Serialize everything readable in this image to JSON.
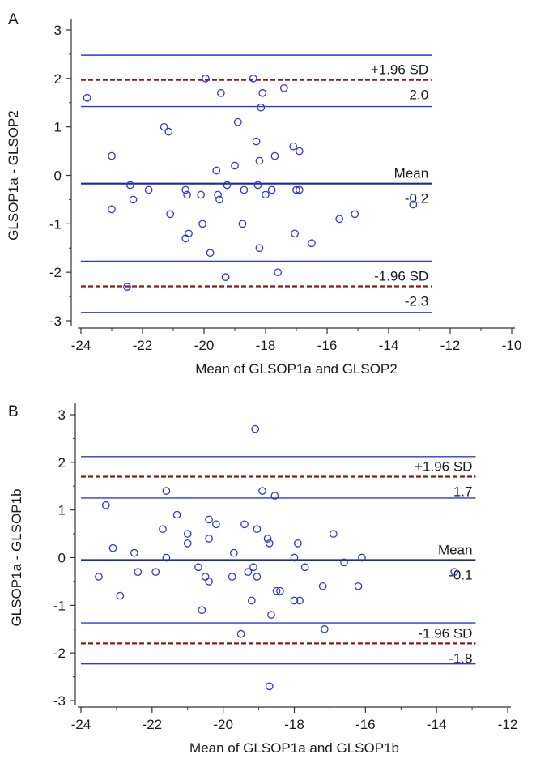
{
  "colors": {
    "axis": "#333333",
    "limit_line": "#2f38d0",
    "mean_line": "#1c2a9c",
    "sd_dashed": "#8b1a1a",
    "marker": "#2f38d0",
    "text": "#1a1a1a"
  },
  "chart_data": [
    {
      "panel_label": "A",
      "type": "scatter",
      "xlabel": "Mean of GLSOP1a and GLSOP2",
      "ylabel": "GLSOP1a - GLSOP2",
      "xlim": [
        -24,
        -10
      ],
      "ylim": [
        -3,
        3
      ],
      "xticks": [
        -24,
        -22,
        -20,
        -18,
        -16,
        -14,
        -12,
        -10
      ],
      "yticks": [
        3,
        2,
        1,
        0,
        -1,
        -2,
        -3
      ],
      "mean": -0.17,
      "upper_loa": 1.97,
      "lower_loa": -2.29,
      "ci_lines": [
        2.48,
        1.42,
        -1.77,
        -2.83
      ],
      "line_x_range": [
        -24,
        -12.6
      ],
      "annotations": {
        "upper_label": "+1.96 SD",
        "upper_value": "2.0",
        "mean_label": "Mean",
        "mean_value": "-0.2",
        "lower_label": "-1.96 SD",
        "lower_value": "-2.3"
      },
      "points": [
        [
          -23.8,
          1.6
        ],
        [
          -23.0,
          0.4
        ],
        [
          -23.0,
          -0.7
        ],
        [
          -22.5,
          -2.3
        ],
        [
          -22.4,
          -0.2
        ],
        [
          -22.3,
          -0.5
        ],
        [
          -21.8,
          -0.3
        ],
        [
          -21.3,
          1.0
        ],
        [
          -21.15,
          0.9
        ],
        [
          -21.1,
          -0.8
        ],
        [
          -20.6,
          -0.3
        ],
        [
          -20.55,
          -0.4
        ],
        [
          -20.6,
          -1.3
        ],
        [
          -20.5,
          -1.2
        ],
        [
          -20.1,
          -0.4
        ],
        [
          -20.05,
          -1.0
        ],
        [
          -19.95,
          2.0
        ],
        [
          -19.8,
          -1.6
        ],
        [
          -19.6,
          0.1
        ],
        [
          -19.55,
          -0.4
        ],
        [
          -19.5,
          -0.5
        ],
        [
          -19.45,
          1.7
        ],
        [
          -19.3,
          -2.1
        ],
        [
          -19.25,
          -0.2
        ],
        [
          -19.0,
          0.2
        ],
        [
          -18.9,
          1.1
        ],
        [
          -18.75,
          -1.0
        ],
        [
          -18.7,
          -0.3
        ],
        [
          -18.4,
          2.0
        ],
        [
          -18.3,
          0.7
        ],
        [
          -18.25,
          -0.2
        ],
        [
          -18.2,
          0.3
        ],
        [
          -18.15,
          1.4
        ],
        [
          -18.1,
          1.7
        ],
        [
          -18.2,
          -1.5
        ],
        [
          -18.0,
          -0.4
        ],
        [
          -17.8,
          -0.3
        ],
        [
          -17.7,
          0.4
        ],
        [
          -17.6,
          -2.0
        ],
        [
          -17.4,
          1.8
        ],
        [
          -17.1,
          0.6
        ],
        [
          -17.05,
          -1.2
        ],
        [
          -17.0,
          -0.3
        ],
        [
          -16.9,
          -0.3
        ],
        [
          -16.9,
          0.5
        ],
        [
          -16.5,
          -1.4
        ],
        [
          -15.6,
          -0.9
        ],
        [
          -15.1,
          -0.8
        ],
        [
          -13.2,
          -0.6
        ]
      ]
    },
    {
      "panel_label": "B",
      "type": "scatter",
      "xlabel": "Mean of GLSOP1a and GLSOP1b",
      "ylabel": "GLSOP1a - GLSOP1b",
      "xlim": [
        -24,
        -12
      ],
      "ylim": [
        -3,
        3
      ],
      "xticks": [
        -24,
        -22,
        -20,
        -18,
        -16,
        -14,
        -12
      ],
      "yticks": [
        3,
        2,
        1,
        0,
        -1,
        -2,
        -3
      ],
      "mean": -0.05,
      "upper_loa": 1.7,
      "lower_loa": -1.8,
      "ci_lines": [
        2.12,
        1.25,
        -1.37,
        -2.23
      ],
      "line_x_range": [
        -24,
        -12.9
      ],
      "annotations": {
        "upper_label": "+1.96 SD",
        "upper_value": "1.7",
        "mean_label": "Mean",
        "mean_value": "-0.1",
        "lower_label": "-1.96 SD",
        "lower_value": "-1.8"
      },
      "points": [
        [
          -23.5,
          -0.4
        ],
        [
          -23.3,
          1.1
        ],
        [
          -23.1,
          0.2
        ],
        [
          -22.9,
          -0.8
        ],
        [
          -22.5,
          0.1
        ],
        [
          -22.4,
          -0.3
        ],
        [
          -21.9,
          -0.3
        ],
        [
          -21.7,
          0.6
        ],
        [
          -21.6,
          1.4
        ],
        [
          -21.6,
          0.0
        ],
        [
          -21.3,
          0.9
        ],
        [
          -21.0,
          0.5
        ],
        [
          -21.0,
          0.3
        ],
        [
          -20.7,
          -0.2
        ],
        [
          -20.6,
          -1.1
        ],
        [
          -20.5,
          -0.4
        ],
        [
          -20.4,
          0.8
        ],
        [
          -20.4,
          -0.5
        ],
        [
          -20.4,
          0.4
        ],
        [
          -20.2,
          0.7
        ],
        [
          -19.75,
          -0.4
        ],
        [
          -19.7,
          0.1
        ],
        [
          -19.5,
          -1.6
        ],
        [
          -19.4,
          0.7
        ],
        [
          -19.3,
          -0.3
        ],
        [
          -19.2,
          -0.9
        ],
        [
          -19.15,
          -0.2
        ],
        [
          -19.1,
          2.7
        ],
        [
          -19.05,
          0.6
        ],
        [
          -19.05,
          -0.4
        ],
        [
          -18.9,
          1.4
        ],
        [
          -18.75,
          0.4
        ],
        [
          -18.7,
          0.3
        ],
        [
          -18.65,
          -1.2
        ],
        [
          -18.7,
          -2.7
        ],
        [
          -18.55,
          1.3
        ],
        [
          -18.5,
          -0.7
        ],
        [
          -18.4,
          -0.7
        ],
        [
          -18.0,
          -0.9
        ],
        [
          -18.0,
          0.0
        ],
        [
          -17.9,
          0.3
        ],
        [
          -17.85,
          -0.9
        ],
        [
          -17.7,
          -0.2
        ],
        [
          -17.2,
          -0.6
        ],
        [
          -17.15,
          -1.5
        ],
        [
          -16.9,
          0.5
        ],
        [
          -16.6,
          -0.1
        ],
        [
          -16.2,
          -0.6
        ],
        [
          -16.1,
          0.0
        ],
        [
          -13.5,
          -0.3
        ]
      ]
    }
  ]
}
